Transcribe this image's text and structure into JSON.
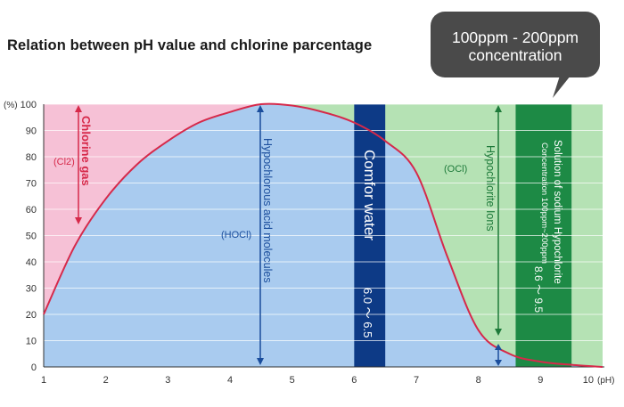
{
  "title": "Relation between pH value and chlorine parcentage",
  "callout": {
    "line1": "100ppm - 200ppm",
    "line2": "concentration"
  },
  "colors": {
    "chlorine_gas_zone": "#f6c1d6",
    "hocl_zone": "#a9cbef",
    "ocl_zone": "#b5e2b4",
    "comfor_band": "#0d3a86",
    "hypochlorite_band": "#1d8a45",
    "curve": "#d6294a",
    "callout": "#4a4a4a"
  },
  "chart_data": {
    "type": "area",
    "xlabel": "(pH)",
    "ylabel": "(%)",
    "xlim": [
      1,
      10
    ],
    "ylim": [
      0,
      100
    ],
    "x_ticks": [
      1,
      2,
      3,
      4,
      5,
      6,
      7,
      8,
      9,
      10
    ],
    "y_ticks": [
      0,
      10,
      20,
      30,
      40,
      50,
      60,
      70,
      80,
      90,
      100
    ],
    "curve": {
      "x": [
        1,
        1.5,
        2,
        2.5,
        3,
        3.5,
        4,
        4.5,
        5,
        5.5,
        6,
        6.5,
        7,
        7.5,
        8,
        8.5,
        9,
        9.5,
        10
      ],
      "y": [
        20,
        46,
        64,
        77,
        86,
        93,
        97,
        100,
        99.5,
        97,
        93,
        86,
        74,
        42,
        14,
        5,
        2,
        0.8,
        0
      ]
    },
    "bands": [
      {
        "id": "comfor",
        "x": [
          6.0,
          6.5
        ],
        "label": "Comfor water",
        "range_label": "6.0 ～ 6.5"
      },
      {
        "id": "hypochlorite",
        "x": [
          8.6,
          9.5
        ],
        "label": "Solution of sodium Hypochlorite",
        "sub_label": "Concentration 100ppm~200ppm",
        "range_label": "8.6 ～ 9.5"
      }
    ],
    "annotations": {
      "cl2_label": "Chlorine gas",
      "cl2_formula": "(Cl2)",
      "hocl_label": "Hypochlorous acid molecules",
      "hocl_formula": "(HOCl)",
      "ocl_label": "Hypochlorite Ions",
      "ocl_formula": "(OCl)"
    }
  }
}
